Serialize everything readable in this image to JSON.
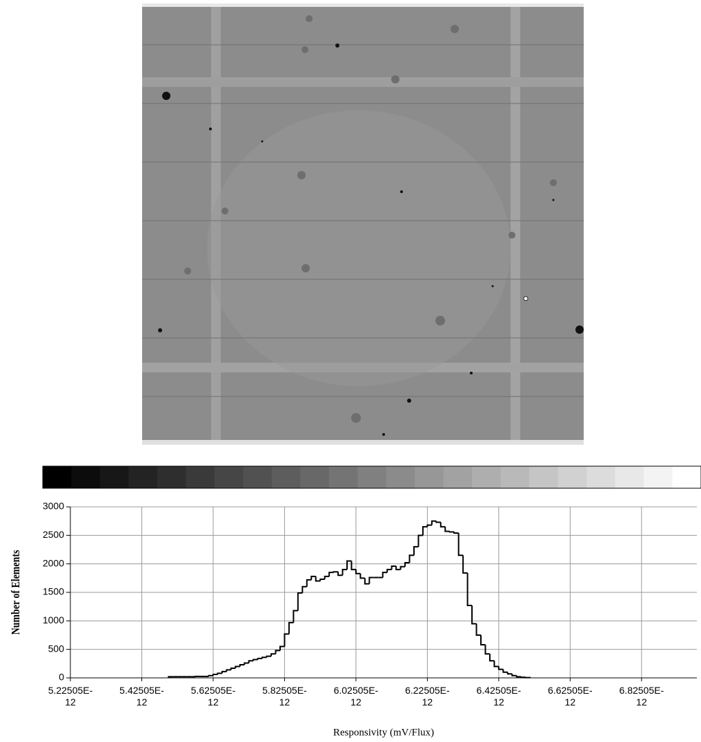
{
  "chart_data": {
    "type": "histogram",
    "xlabel": "Responsivity (mV/Flux)",
    "ylabel": "Number of Elements",
    "color": "#000000",
    "grid": true,
    "xlim": [
      5.22505e-12,
      6.98e-12
    ],
    "ylim": [
      0,
      3000
    ],
    "yticks": [
      0,
      500,
      1000,
      1500,
      2000,
      2500,
      3000
    ],
    "xticks": [
      {
        "value": 5.22505e-12,
        "label": "5.22505E-12"
      },
      {
        "value": 5.42505e-12,
        "label": "5.42505E-12"
      },
      {
        "value": 5.62505e-12,
        "label": "5.62505E-12"
      },
      {
        "value": 5.82505e-12,
        "label": "5.82505E-12"
      },
      {
        "value": 6.02505e-12,
        "label": "6.02505E-12"
      },
      {
        "value": 6.22505e-12,
        "label": "6.22505E-12"
      },
      {
        "value": 6.42505e-12,
        "label": "6.42505E-12"
      },
      {
        "value": 6.62505e-12,
        "label": "6.62505E-12"
      },
      {
        "value": 6.82505e-12,
        "label": "6.82505E-12"
      }
    ],
    "bins": [
      5.50005e-12,
      5.51255e-12,
      5.52505e-12,
      5.53755e-12,
      5.55005e-12,
      5.56255e-12,
      5.57505e-12,
      5.58755e-12,
      5.60005e-12,
      5.61255e-12,
      5.62505e-12,
      5.63755e-12,
      5.65005e-12,
      5.66255e-12,
      5.67505e-12,
      5.68755e-12,
      5.70005e-12,
      5.71255e-12,
      5.72505e-12,
      5.73755e-12,
      5.75005e-12,
      5.76255e-12,
      5.77505e-12,
      5.78755e-12,
      5.80005e-12,
      5.81255e-12,
      5.82505e-12,
      5.83755e-12,
      5.85005e-12,
      5.86255e-12,
      5.87505e-12,
      5.88755e-12,
      5.90005e-12,
      5.91255e-12,
      5.92505e-12,
      5.93755e-12,
      5.95005e-12,
      5.96255e-12,
      5.97505e-12,
      5.98755e-12,
      6.00005e-12,
      6.01255e-12,
      6.02505e-12,
      6.03755e-12,
      6.05005e-12,
      6.06255e-12,
      6.07505e-12,
      6.08755e-12,
      6.10005e-12,
      6.11255e-12,
      6.12505e-12,
      6.13755e-12,
      6.15005e-12,
      6.16255e-12,
      6.17505e-12,
      6.18755e-12,
      6.20005e-12,
      6.21255e-12,
      6.22505e-12,
      6.23755e-12,
      6.25005e-12,
      6.26255e-12,
      6.27505e-12,
      6.28755e-12,
      6.30005e-12,
      6.31255e-12,
      6.32505e-12,
      6.33755e-12,
      6.35005e-12,
      6.36255e-12,
      6.37505e-12,
      6.38755e-12,
      6.40005e-12,
      6.41255e-12,
      6.42505e-12,
      6.43755e-12,
      6.45005e-12,
      6.46255e-12,
      6.47505e-12,
      6.48755e-12,
      6.50005e-12,
      6.51255e-12
    ],
    "values": [
      20,
      20,
      20,
      20,
      20,
      20,
      25,
      25,
      25,
      40,
      60,
      80,
      110,
      140,
      170,
      200,
      230,
      260,
      300,
      320,
      340,
      360,
      380,
      420,
      480,
      550,
      770,
      970,
      1180,
      1490,
      1600,
      1720,
      1780,
      1700,
      1730,
      1780,
      1850,
      1860,
      1800,
      1900,
      2050,
      1900,
      1830,
      1750,
      1650,
      1760,
      1760,
      1760,
      1850,
      1900,
      1960,
      1900,
      1950,
      2020,
      2150,
      2300,
      2500,
      2650,
      2680,
      2750,
      2730,
      2650,
      2570,
      2560,
      2540,
      2150,
      1840,
      1270,
      950,
      750,
      580,
      420,
      300,
      200,
      150,
      100,
      70,
      40,
      20,
      10,
      5
    ]
  }
}
